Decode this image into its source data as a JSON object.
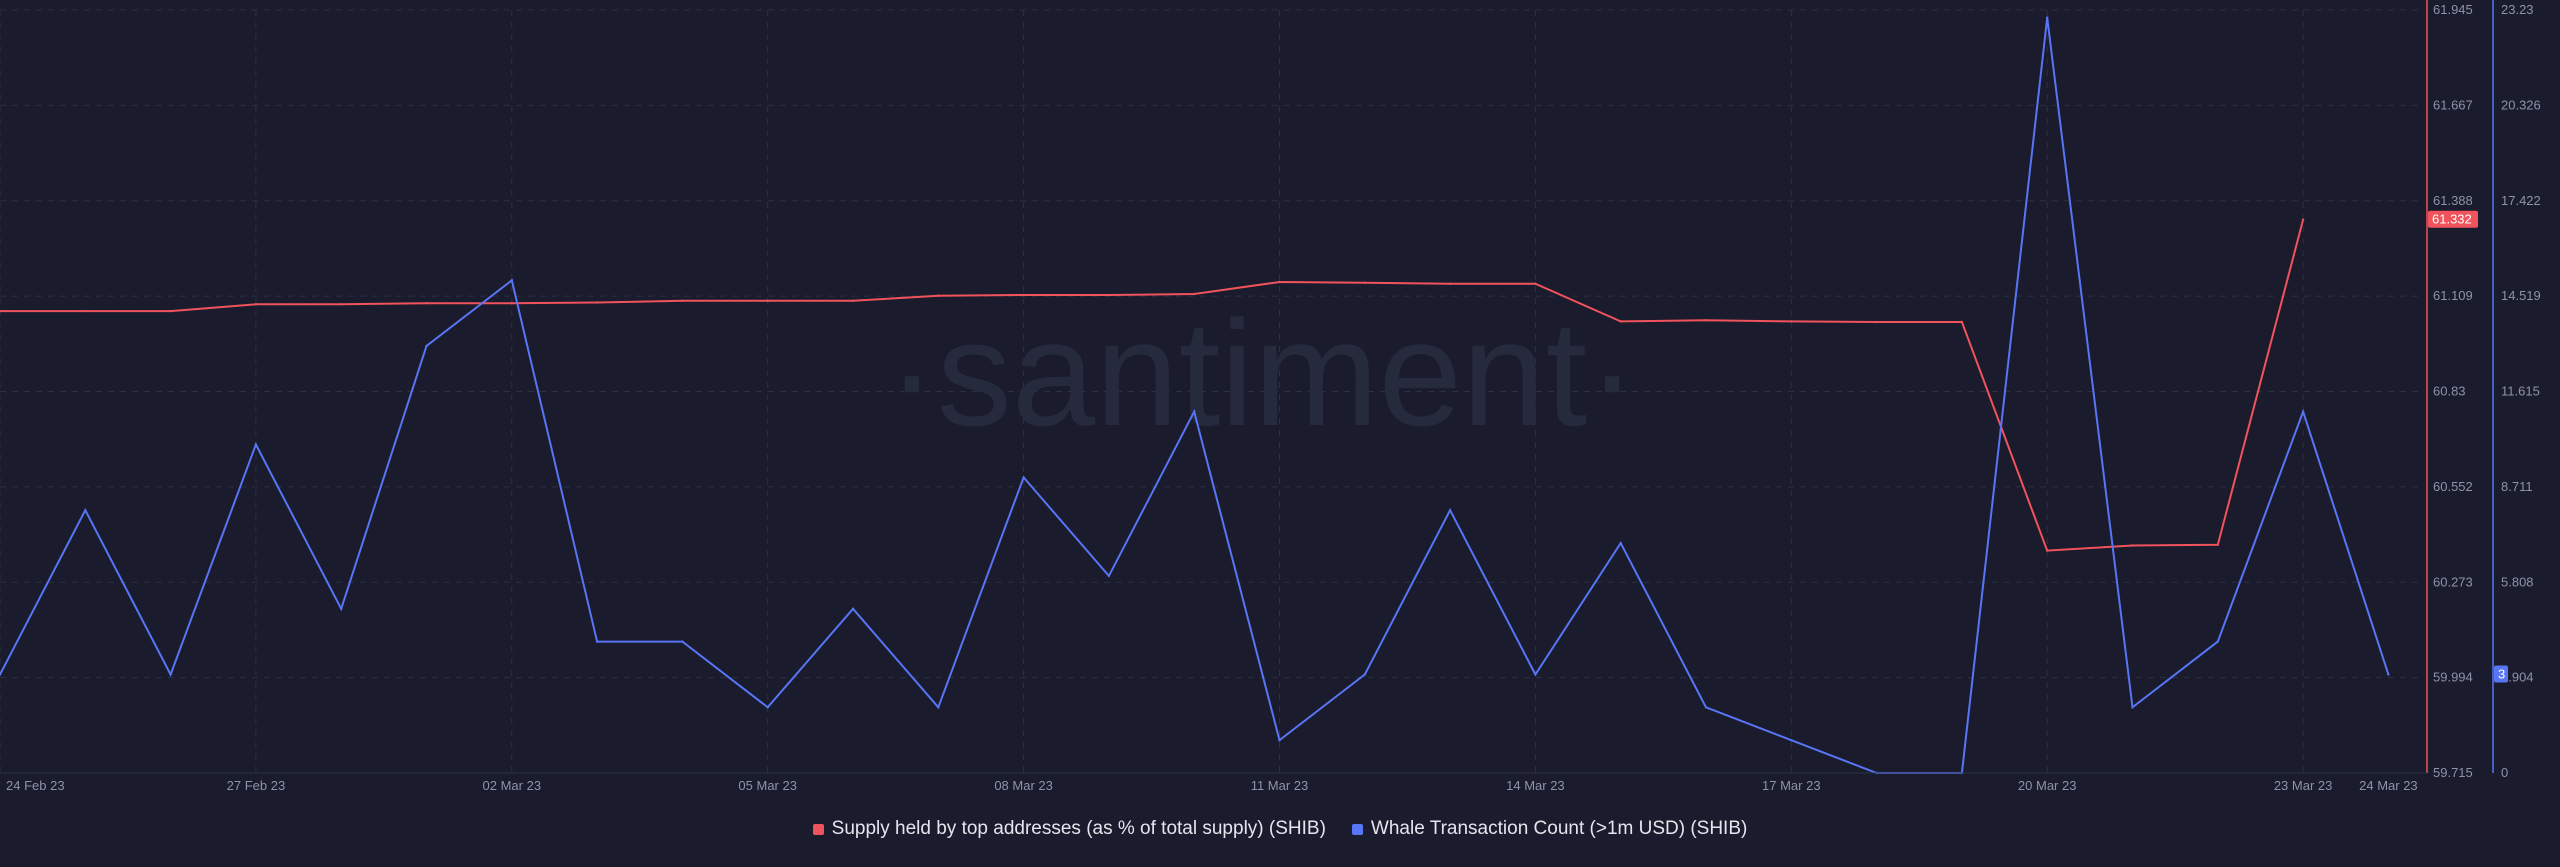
{
  "colors": {
    "background": "#1a1b2c",
    "supply": "#f0535b",
    "whale": "#5775f5",
    "grid": "#2c3044",
    "text": "#8d93ab"
  },
  "watermark": "·santiment·",
  "chart_data": {
    "type": "line",
    "x_labels": [
      "24 Feb 23",
      "27 Feb 23",
      "02 Mar 23",
      "05 Mar 23",
      "08 Mar 23",
      "11 Mar 23",
      "14 Mar 23",
      "17 Mar 23",
      "20 Mar 23",
      "23 Mar 23",
      "24 Mar 23"
    ],
    "x": [
      "24 Feb",
      "25 Feb",
      "26 Feb",
      "27 Feb",
      "28 Feb",
      "01 Mar",
      "02 Mar",
      "03 Mar",
      "04 Mar",
      "05 Mar",
      "06 Mar",
      "07 Mar",
      "08 Mar",
      "09 Mar",
      "10 Mar",
      "11 Mar",
      "12 Mar",
      "13 Mar",
      "14 Mar",
      "15 Mar",
      "16 Mar",
      "17 Mar",
      "18 Mar",
      "19 Mar",
      "20 Mar",
      "21 Mar",
      "22 Mar",
      "23 Mar",
      "24 Mar"
    ],
    "y_left": {
      "ticks": [
        "61.945",
        "61.667",
        "61.388",
        "61.109",
        "60.83",
        "60.552",
        "60.273",
        "59.994",
        "59.715"
      ],
      "ylim": [
        59.715,
        61.945
      ]
    },
    "y_right": {
      "ticks": [
        "23.23",
        "20.326",
        "17.422",
        "14.519",
        "11.615",
        "8.711",
        "5.808",
        "2.904",
        "0"
      ],
      "ylim": [
        0,
        23.23
      ]
    },
    "series": [
      {
        "name": "Supply held by top addresses (as % of total supply) (SHIB)",
        "axis": "left",
        "values": [
          61.065,
          61.065,
          61.065,
          61.085,
          61.085,
          61.088,
          61.088,
          61.09,
          61.095,
          61.095,
          61.095,
          61.11,
          61.112,
          61.112,
          61.115,
          61.15,
          61.148,
          61.145,
          61.145,
          61.035,
          61.038,
          61.035,
          61.033,
          61.033,
          60.365,
          60.38,
          60.382,
          61.332,
          null
        ],
        "last_label": "61.332"
      },
      {
        "name": "Whale Transaction Count (>1m USD) (SHIB)",
        "axis": "right",
        "values": [
          3,
          8,
          3,
          10,
          5,
          13,
          15,
          4,
          4,
          2,
          5,
          2,
          9,
          6,
          11,
          1,
          3,
          8,
          3,
          7,
          2,
          1,
          0,
          0,
          23,
          2,
          4,
          11,
          3
        ],
        "last_label": "3"
      }
    ],
    "grid": true,
    "legend_position": "bottom-center"
  }
}
